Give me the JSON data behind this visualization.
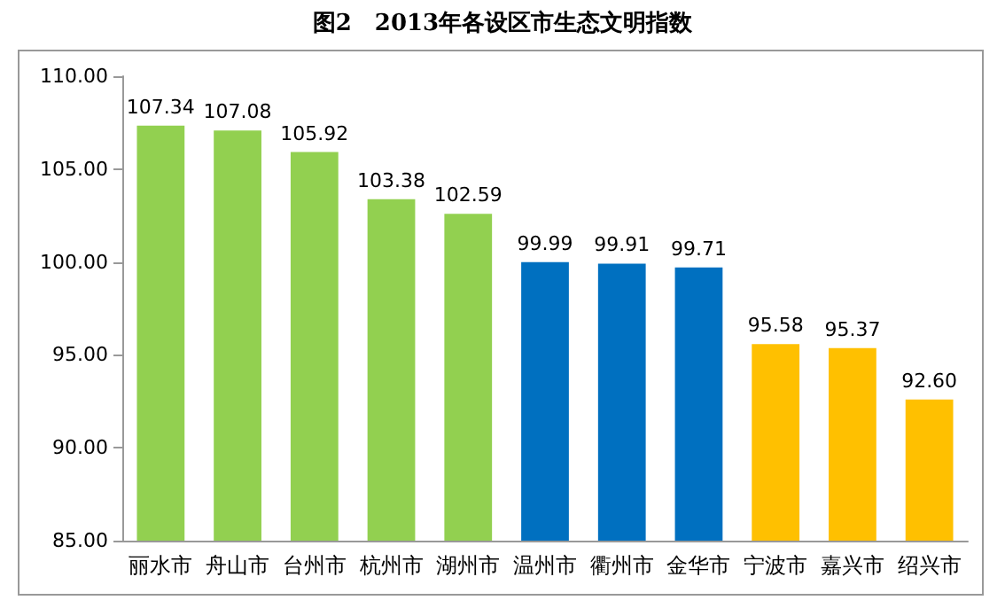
{
  "chart_data": {
    "type": "bar",
    "title": "图2　2013年各设区市生态文明指数",
    "categories": [
      "丽水市",
      "舟山市",
      "台州市",
      "杭州市",
      "湖州市",
      "温州市",
      "衢州市",
      "金华市",
      "宁波市",
      "嘉兴市",
      "绍兴市"
    ],
    "values": [
      107.34,
      107.08,
      105.92,
      103.38,
      102.59,
      99.99,
      99.91,
      99.71,
      95.58,
      95.37,
      92.6
    ],
    "colors": [
      "#92d050",
      "#92d050",
      "#92d050",
      "#92d050",
      "#92d050",
      "#0070c0",
      "#0070c0",
      "#0070c0",
      "#ffc000",
      "#ffc000",
      "#ffc000"
    ],
    "value_labels": [
      "107.34",
      "107.08",
      "105.92",
      "103.38",
      "102.59",
      "99.99",
      "99.91",
      "99.71",
      "95.58",
      "95.37",
      "92.60"
    ],
    "ylim": [
      85,
      110
    ],
    "yticks": [
      {
        "value": 85,
        "label": "85.00"
      },
      {
        "value": 90,
        "label": "90.00"
      },
      {
        "value": 95,
        "label": "95.00"
      },
      {
        "value": 100,
        "label": "100.00"
      },
      {
        "value": 105,
        "label": "105.00"
      },
      {
        "value": 110,
        "label": "110.00"
      }
    ],
    "grid": false
  }
}
